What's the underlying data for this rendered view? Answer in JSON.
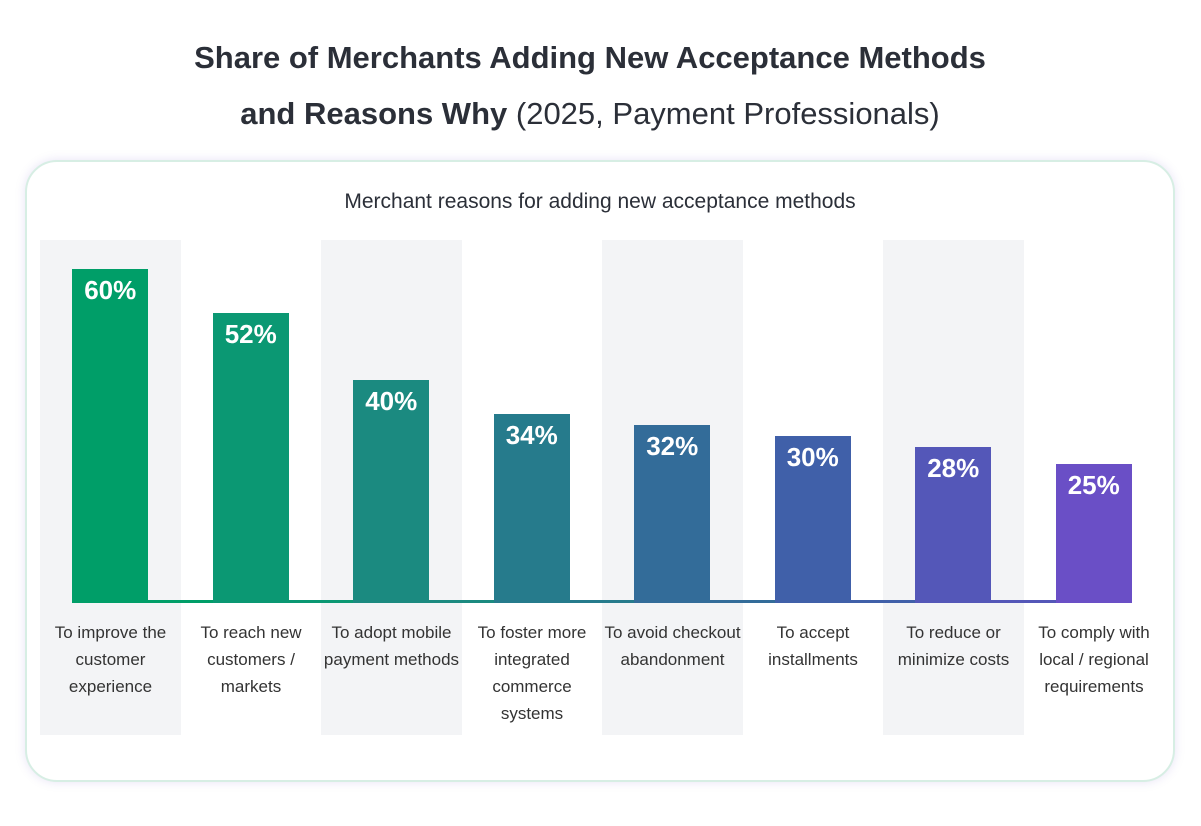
{
  "chart_data": {
    "type": "bar",
    "title": "Share of Merchants Adding New Acceptance Methods and Reasons Why",
    "title_note": "(2025, Payment Professionals)",
    "subtitle": "Merchant reasons for adding new acceptance methods",
    "categories": [
      "To improve the customer experience",
      "To reach new customers / markets",
      "To adopt mobile payment methods",
      "To foster more integrated commerce systems",
      "To avoid checkout abandonment",
      "To accept installments",
      "To reduce or minimize costs",
      "To comply with local / regional requirements"
    ],
    "values": [
      60,
      52,
      40,
      34,
      32,
      30,
      28,
      25
    ],
    "value_labels": [
      "60%",
      "52%",
      "40%",
      "34%",
      "32%",
      "30%",
      "28%",
      "25%"
    ],
    "colors": [
      "#009e68",
      "#0b9873",
      "#1b8a80",
      "#267b8c",
      "#336c99",
      "#4060a9",
      "#5457b8",
      "#6a4fc6"
    ]
  }
}
